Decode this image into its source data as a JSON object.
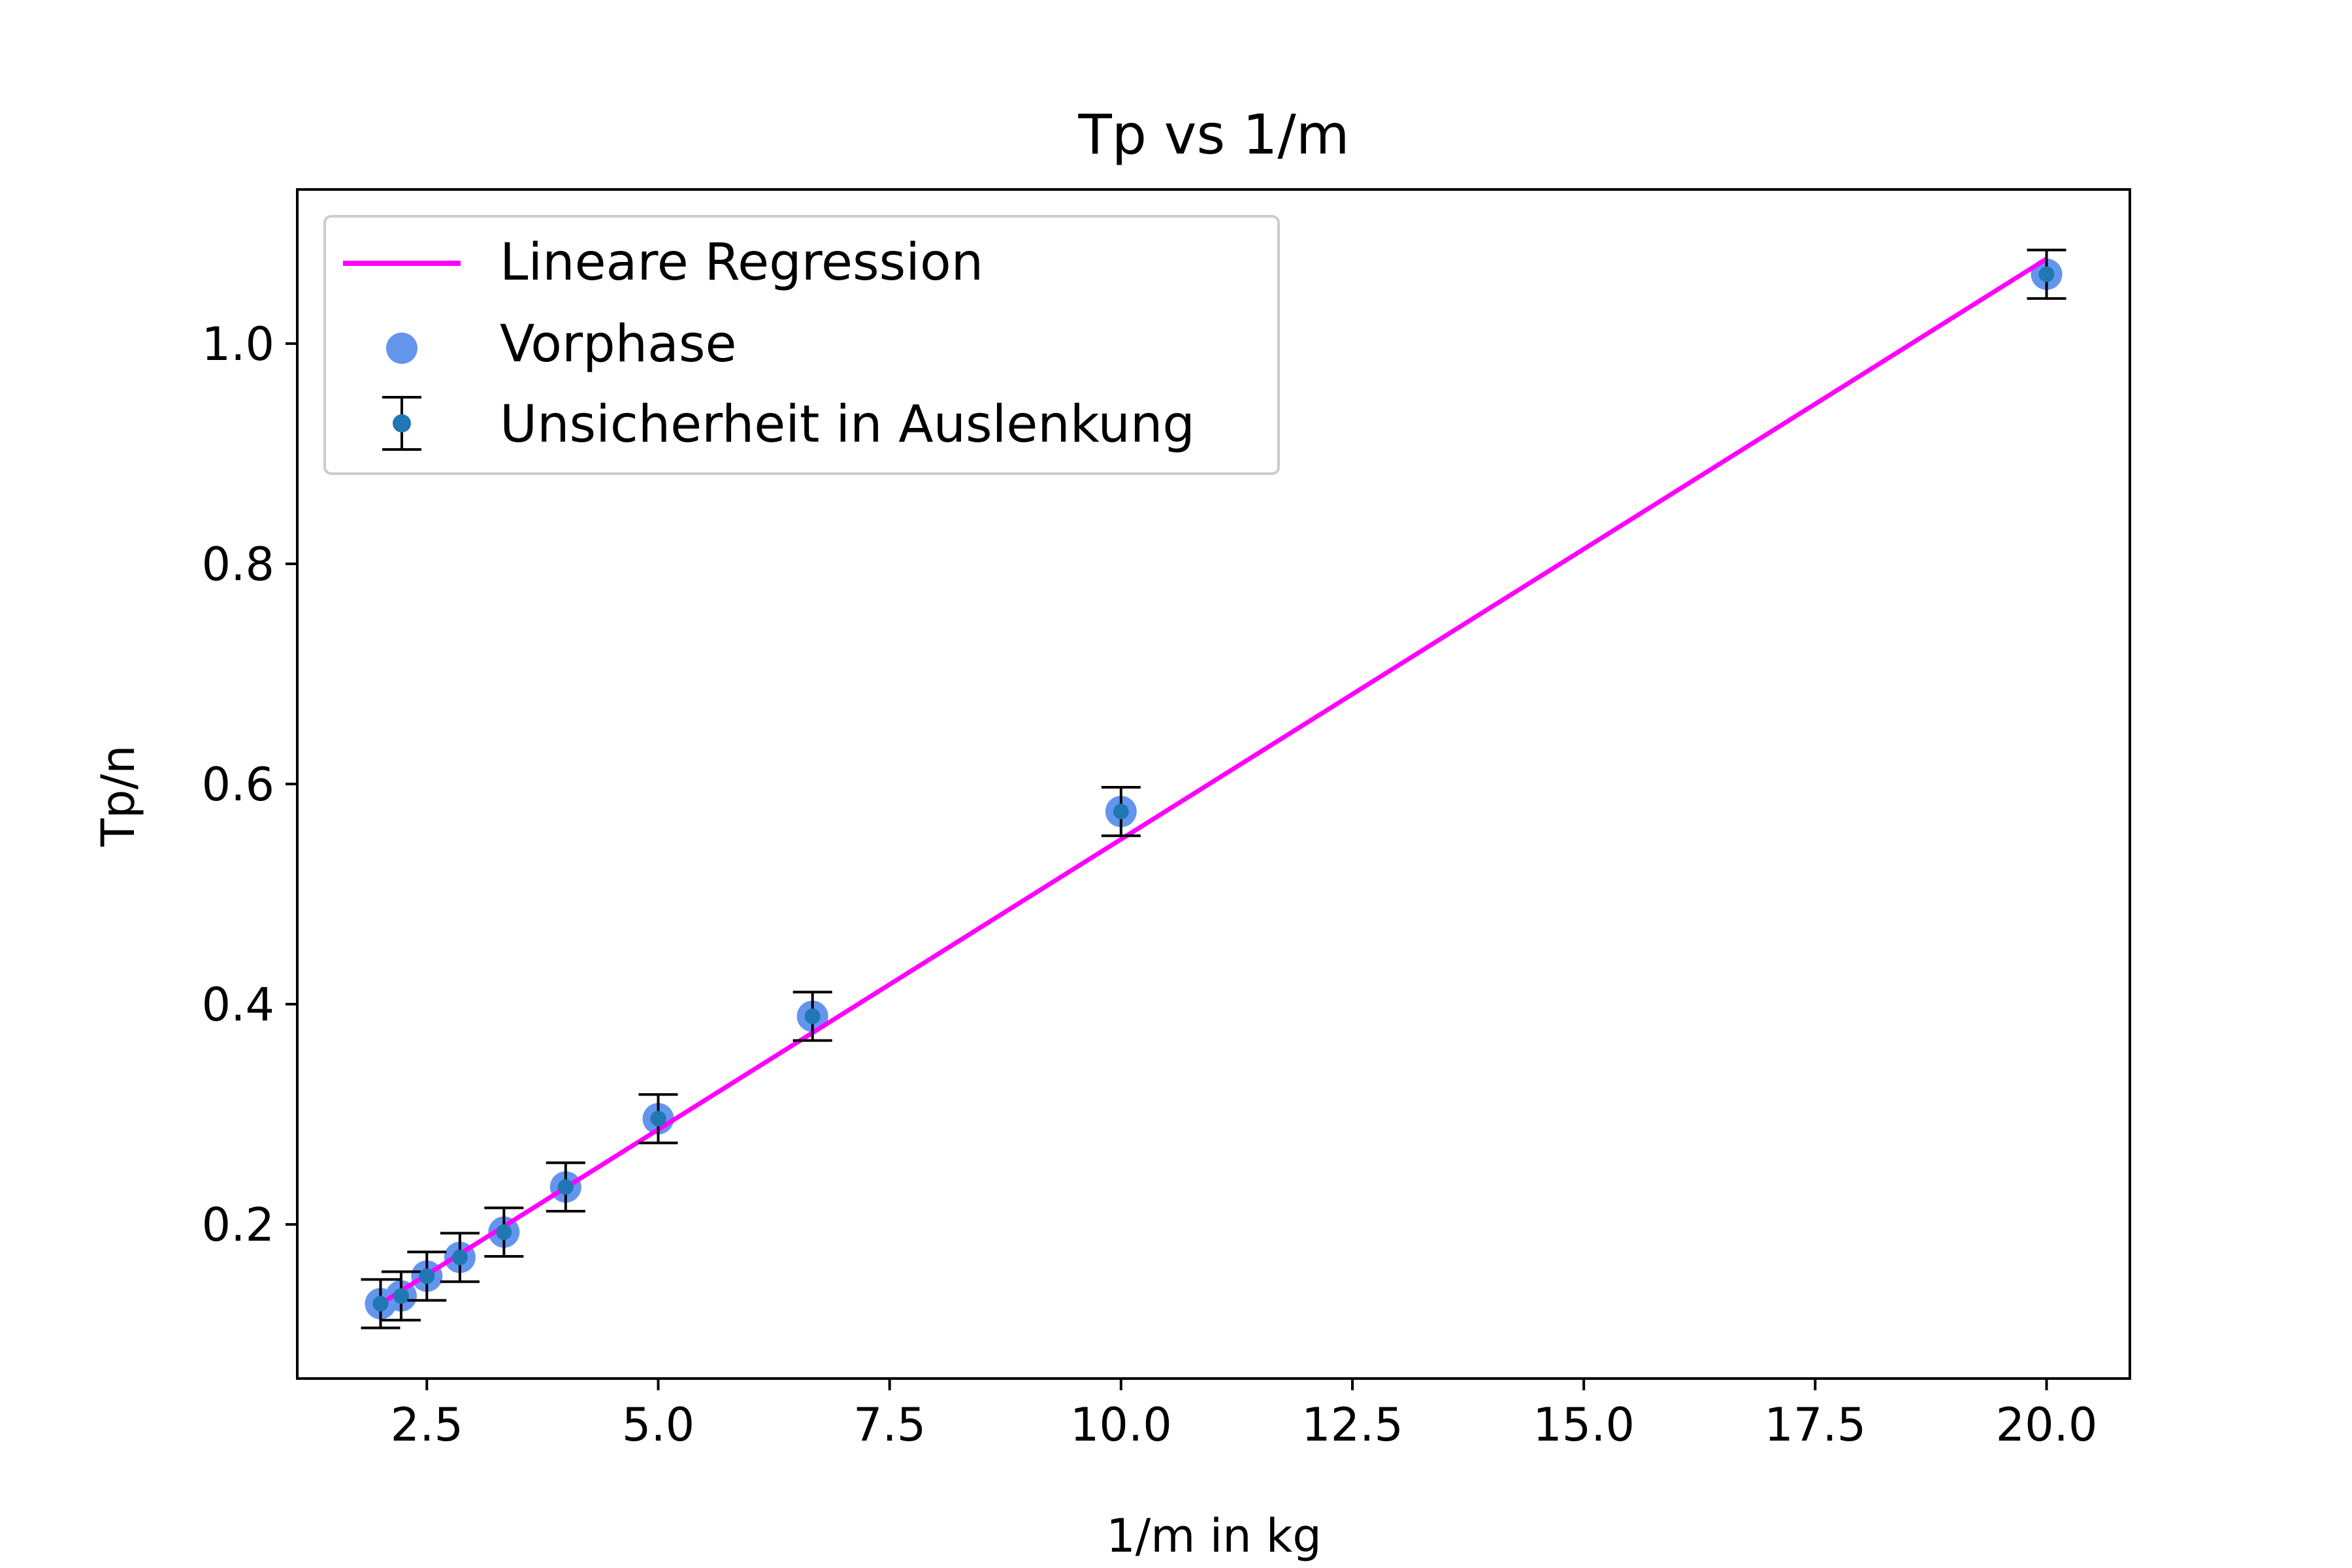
{
  "chart_data": {
    "type": "scatter",
    "title": "Tp vs 1/m",
    "xlabel": "1/m in kg",
    "ylabel": "Tp/n",
    "xlim": [
      1.1,
      20.9
    ],
    "ylim": [
      0.06,
      1.14
    ],
    "xticks": [
      2.5,
      5.0,
      7.5,
      10.0,
      12.5,
      15.0,
      17.5,
      20.0
    ],
    "xtick_labels": [
      "2.5",
      "5.0",
      "7.5",
      "10.0",
      "12.5",
      "15.0",
      "17.5",
      "20.0"
    ],
    "yticks": [
      0.2,
      0.4,
      0.6,
      0.8,
      1.0
    ],
    "ytick_labels": [
      "0.2",
      "0.4",
      "0.6",
      "0.8",
      "1.0"
    ],
    "grid": false,
    "legend_position": "top-left",
    "series": [
      {
        "name": "Lineare Regression",
        "kind": "line",
        "color": "#ff00ff",
        "x": [
          2.0,
          20.0
        ],
        "y": [
          0.128,
          1.077
        ]
      },
      {
        "name": "Vorphase",
        "kind": "scatter",
        "color": "#6495ed",
        "x": [
          2.0,
          2.222,
          2.5,
          2.857,
          3.333,
          4.0,
          5.0,
          6.667,
          10.0,
          20.0
        ],
        "y": [
          0.128,
          0.135,
          0.153,
          0.17,
          0.193,
          0.234,
          0.296,
          0.389,
          0.575,
          1.063
        ]
      },
      {
        "name": "Unsicherheit in Auslenkung",
        "kind": "errorbar",
        "color": "#1f77b4",
        "ecolor": "#000000",
        "x": [
          2.0,
          2.222,
          2.5,
          2.857,
          3.333,
          4.0,
          5.0,
          6.667,
          10.0,
          20.0
        ],
        "y": [
          0.128,
          0.135,
          0.153,
          0.17,
          0.193,
          0.234,
          0.296,
          0.389,
          0.575,
          1.063
        ],
        "yerr": 0.022
      }
    ]
  }
}
